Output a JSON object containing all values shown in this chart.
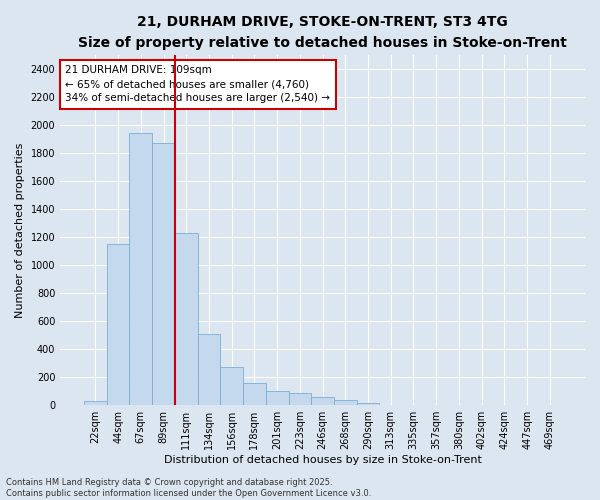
{
  "title_line1": "21, DURHAM DRIVE, STOKE-ON-TRENT, ST3 4TG",
  "title_line2": "Size of property relative to detached houses in Stoke-on-Trent",
  "xlabel": "Distribution of detached houses by size in Stoke-on-Trent",
  "ylabel": "Number of detached properties",
  "categories": [
    "22sqm",
    "44sqm",
    "67sqm",
    "89sqm",
    "111sqm",
    "134sqm",
    "156sqm",
    "178sqm",
    "201sqm",
    "223sqm",
    "246sqm",
    "268sqm",
    "290sqm",
    "313sqm",
    "335sqm",
    "357sqm",
    "380sqm",
    "402sqm",
    "424sqm",
    "447sqm",
    "469sqm"
  ],
  "values": [
    30,
    1150,
    1940,
    1870,
    1230,
    510,
    270,
    160,
    100,
    90,
    60,
    40,
    15,
    5,
    2,
    2,
    1,
    1,
    1,
    1,
    1
  ],
  "bar_color": "#c5d9ee",
  "bar_edge_color": "#7aafd4",
  "background_color": "#dce6f0",
  "grid_color": "#ffffff",
  "vline_color": "#cc0000",
  "vline_position": 3.5,
  "annotation_text": "21 DURHAM DRIVE: 109sqm\n← 65% of detached houses are smaller (4,760)\n34% of semi-detached houses are larger (2,540) →",
  "annotation_box_color": "#ffffff",
  "annotation_box_edge": "#cc0000",
  "ylim": [
    0,
    2500
  ],
  "yticks": [
    0,
    200,
    400,
    600,
    800,
    1000,
    1200,
    1400,
    1600,
    1800,
    2000,
    2200,
    2400
  ],
  "footnote": "Contains HM Land Registry data © Crown copyright and database right 2025.\nContains public sector information licensed under the Open Government Licence v3.0.",
  "title_fontsize": 10,
  "subtitle_fontsize": 8.5,
  "axis_label_fontsize": 8,
  "tick_fontsize": 7,
  "annotation_fontsize": 7.5,
  "footnote_fontsize": 6
}
